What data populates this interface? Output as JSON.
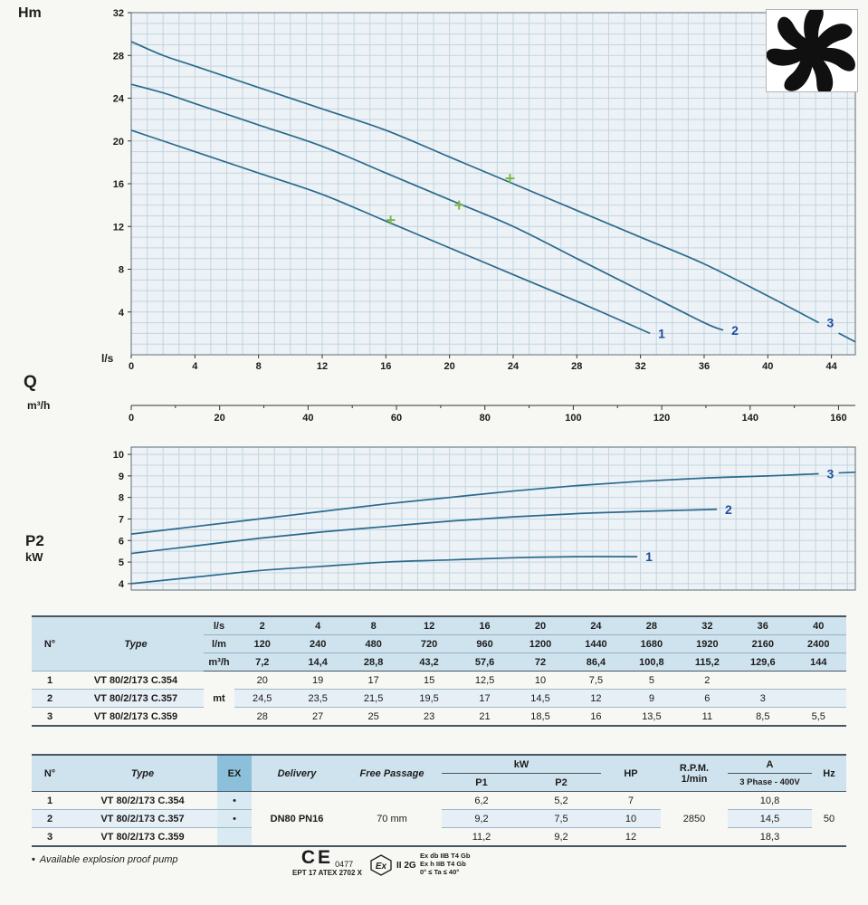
{
  "labels": {
    "hm": "Hm",
    "ls": "l/s",
    "q": "Q",
    "m3h": "m³/h",
    "p2": "P2",
    "kw": "kW"
  },
  "chart_data": [
    {
      "type": "line",
      "title": "Head curves H(Q)",
      "ylabel": "Hm",
      "xlabel": "l/s",
      "x2label": "m³/h",
      "ylim": [
        0,
        32
      ],
      "xlim": [
        0,
        45.5
      ],
      "y_ticks": [
        4,
        8,
        12,
        16,
        20,
        24,
        28,
        32
      ],
      "x_ticks": [
        0,
        4,
        8,
        12,
        16,
        20,
        24,
        28,
        32,
        36,
        40,
        44
      ],
      "x2_ticks": [
        0,
        20,
        40,
        60,
        80,
        100,
        120,
        140,
        160
      ],
      "grid": true,
      "legend": [
        "1",
        "2",
        "3"
      ],
      "series": [
        {
          "name": "1",
          "x": [
            0,
            2,
            4,
            8,
            12,
            16,
            20,
            24,
            28,
            32.6
          ],
          "y": [
            21,
            20,
            19,
            17,
            15,
            12.5,
            10,
            7.5,
            5,
            2
          ]
        },
        {
          "name": "2",
          "x": [
            0,
            2,
            4,
            8,
            12,
            16,
            20,
            24,
            28,
            32,
            36,
            37.2
          ],
          "y": [
            25.3,
            24.5,
            23.5,
            21.5,
            19.5,
            17,
            14.5,
            12,
            9,
            6,
            3,
            2.3
          ]
        },
        {
          "name": "3",
          "x": [
            0,
            2,
            4,
            8,
            12,
            16,
            20,
            24,
            28,
            32,
            36,
            40,
            43.2
          ],
          "y": [
            29.3,
            28,
            27,
            25,
            23,
            21,
            18.5,
            16,
            13.5,
            11,
            8.5,
            5.5,
            3.0
          ]
        }
      ],
      "duty_points": [
        {
          "x": 16.3,
          "y": 12.6
        },
        {
          "x": 20.6,
          "y": 14.0
        },
        {
          "x": 23.8,
          "y": 16.5
        }
      ]
    },
    {
      "type": "line",
      "title": "Shaft power P2(Q)",
      "ylabel": "P2 kW",
      "ylim": [
        3.7,
        10.34
      ],
      "xlim": [
        0,
        45.5
      ],
      "y_ticks": [
        4,
        5,
        6,
        7,
        8,
        9,
        10
      ],
      "grid": true,
      "legend": [
        "1",
        "2",
        "3"
      ],
      "series": [
        {
          "name": "1",
          "x": [
            0,
            4,
            8,
            12,
            16,
            20,
            24,
            28,
            31.8
          ],
          "y": [
            4.0,
            4.3,
            4.6,
            4.8,
            5.0,
            5.1,
            5.2,
            5.25,
            5.25
          ]
        },
        {
          "name": "2",
          "x": [
            0,
            4,
            8,
            12,
            16,
            20,
            24,
            28,
            32,
            36.8
          ],
          "y": [
            5.4,
            5.75,
            6.1,
            6.4,
            6.65,
            6.9,
            7.1,
            7.25,
            7.35,
            7.45
          ]
        },
        {
          "name": "3",
          "x": [
            0,
            4,
            8,
            12,
            16,
            20,
            24,
            28,
            32,
            36,
            40,
            43.2
          ],
          "y": [
            6.3,
            6.65,
            7.0,
            7.35,
            7.7,
            8.0,
            8.3,
            8.55,
            8.75,
            8.9,
            9.0,
            9.1
          ]
        }
      ]
    }
  ],
  "table1": {
    "col_n": "N°",
    "col_type": "Type",
    "unit_rows": [
      "l/s",
      "l/m",
      "m³/h"
    ],
    "flow_ls": [
      "2",
      "4",
      "8",
      "12",
      "16",
      "20",
      "24",
      "28",
      "32",
      "36",
      "40"
    ],
    "flow_lm": [
      "120",
      "240",
      "480",
      "720",
      "960",
      "1200",
      "1440",
      "1680",
      "1920",
      "2160",
      "2400"
    ],
    "flow_m3h": [
      "7,2",
      "14,4",
      "28,8",
      "43,2",
      "57,6",
      "72",
      "86,4",
      "100,8",
      "115,2",
      "129,6",
      "144"
    ],
    "unit_body": "mt",
    "rows": [
      {
        "n": "1",
        "type": "VT 80/2/173 C.354",
        "values": [
          "20",
          "19",
          "17",
          "15",
          "12,5",
          "10",
          "7,5",
          "5",
          "2",
          "",
          ""
        ]
      },
      {
        "n": "2",
        "type": "VT 80/2/173 C.357",
        "values": [
          "24,5",
          "23,5",
          "21,5",
          "19,5",
          "17",
          "14,5",
          "12",
          "9",
          "6",
          "3",
          ""
        ]
      },
      {
        "n": "3",
        "type": "VT 80/2/173 C.359",
        "values": [
          "28",
          "27",
          "25",
          "23",
          "21",
          "18,5",
          "16",
          "13,5",
          "11",
          "8,5",
          "5,5"
        ]
      }
    ]
  },
  "table2": {
    "headers": {
      "n": "N°",
      "type": "Type",
      "ex": "EX",
      "delivery": "Delivery",
      "free_passage": "Free Passage",
      "kw": "kW",
      "p1": "P1",
      "p2": "P2",
      "hp": "HP",
      "rpm": "R.P.M.",
      "rpm_unit": "1/min",
      "a": "A",
      "a_sub": "3 Phase - 400V",
      "hz": "Hz"
    },
    "shared": {
      "delivery": "DN80 PN16",
      "free_passage": "70 mm",
      "rpm": "2850",
      "hz": "50"
    },
    "rows": [
      {
        "n": "1",
        "type": "VT 80/2/173 C.354",
        "ex": "•",
        "p1": "6,2",
        "p2": "5,2",
        "hp": "7",
        "a": "10,8"
      },
      {
        "n": "2",
        "type": "VT 80/2/173 C.357",
        "ex": "•",
        "p1": "9,2",
        "p2": "7,5",
        "hp": "10",
        "a": "14,5"
      },
      {
        "n": "3",
        "type": "VT 80/2/173 C.359",
        "ex": "",
        "p1": "11,2",
        "p2": "9,2",
        "hp": "12",
        "a": "18,3"
      }
    ]
  },
  "footer": {
    "note_bullet": "•",
    "note": "Available explosion proof pump",
    "ce": "CE",
    "ce_number": "0477",
    "atex": "EPT 17 ATEX 2702 X",
    "ex_mark": "Ex",
    "ex_class": "II 2G",
    "ex_lines": [
      "Ex db IIB T4 Gb",
      "Ex h IIB T4 Gb",
      "0° ≤ Ta ≤ 40°"
    ]
  },
  "colors": {
    "curve": "#2a6a8d",
    "curve_label": "#1c4f9e",
    "grid": "#c2d5e0",
    "plot_bg": "#edf2f6",
    "header_bg": "#cfe3ef",
    "ex_header_bg": "#8cc0da",
    "duty_marker": "#7ab648"
  }
}
